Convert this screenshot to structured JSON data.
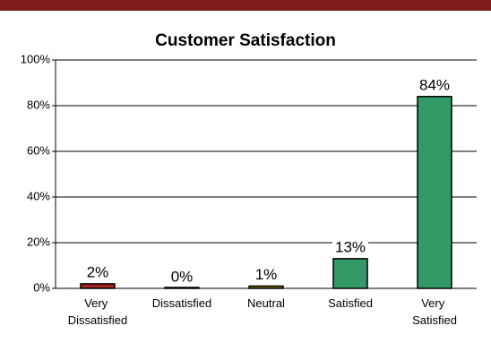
{
  "chart_data": {
    "type": "bar",
    "title": "Customer Satisfaction",
    "categories": [
      "Very Dissatisfied",
      "Dissatisfied",
      "Neutral",
      "Satisfied",
      "Very Satisfied"
    ],
    "values": [
      2,
      0,
      1,
      13,
      84
    ],
    "value_labels": [
      "2%",
      "0%",
      "1%",
      "13%",
      "84%"
    ],
    "colors": [
      "#a3221e",
      "#3a3a3a",
      "#8a7a10",
      "#339966",
      "#339966"
    ],
    "ylim": [
      0,
      100
    ],
    "yticks": [
      {
        "value": 0,
        "label": "0%"
      },
      {
        "value": 20,
        "label": "20%"
      },
      {
        "value": 40,
        "label": "40%"
      },
      {
        "value": 60,
        "label": "60%"
      },
      {
        "value": 80,
        "label": "80%"
      },
      {
        "value": 100,
        "label": "100%"
      }
    ],
    "grid": true
  }
}
